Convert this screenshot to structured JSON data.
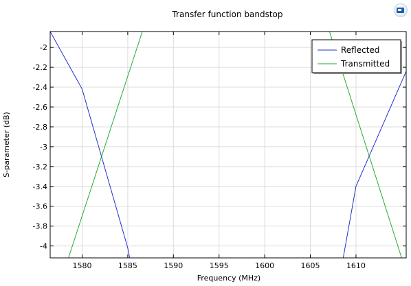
{
  "toolbar": {
    "icon": "screenshot-icon"
  },
  "chart_data": {
    "type": "line",
    "title": "Transfer function bandstop",
    "xlabel": "Frequency (MHz)",
    "ylabel": "S-parameter (dB)",
    "xlim": [
      1576.5,
      1615.5
    ],
    "ylim": [
      -4.12,
      -1.84
    ],
    "xticks": [
      1580,
      1585,
      1590,
      1595,
      1600,
      1605,
      1610
    ],
    "xtick_labels": [
      "1580",
      "1585",
      "1590",
      "1595",
      "1600",
      "1605",
      "1610"
    ],
    "yticks": [
      -2,
      -2.2,
      -2.4,
      -2.6,
      -2.8,
      -3,
      -3.2,
      -3.4,
      -3.6,
      -3.8,
      -4
    ],
    "ytick_labels": [
      "-2",
      "-2.2",
      "-2.4",
      "-2.6",
      "-2.8",
      "-3",
      "-3.2",
      "-3.4",
      "-3.6",
      "-3.8",
      "-4"
    ],
    "grid": true,
    "legend_position": "top-right",
    "series": [
      {
        "name": "Reflected",
        "color": "#1f2fcc",
        "x": [
          1576.5,
          1580,
          1585,
          1585.2
        ],
        "y": [
          -1.84,
          -2.42,
          -4.02,
          -4.12
        ]
      },
      {
        "name": "Reflected",
        "color": "#1f2fcc",
        "x": [
          1608.6,
          1610,
          1615.5
        ],
        "y": [
          -4.12,
          -3.4,
          -2.24
        ]
      },
      {
        "name": "Transmitted",
        "color": "#22aa33",
        "x": [
          1578.5,
          1586.6
        ],
        "y": [
          -4.12,
          -1.84
        ]
      },
      {
        "name": "Transmitted",
        "color": "#22aa33",
        "x": [
          1607.1,
          1615.0
        ],
        "y": [
          -1.84,
          -4.12
        ]
      }
    ],
    "legend": [
      {
        "name": "Reflected",
        "color": "#1f2fcc"
      },
      {
        "name": "Transmitted",
        "color": "#22aa33"
      }
    ]
  }
}
